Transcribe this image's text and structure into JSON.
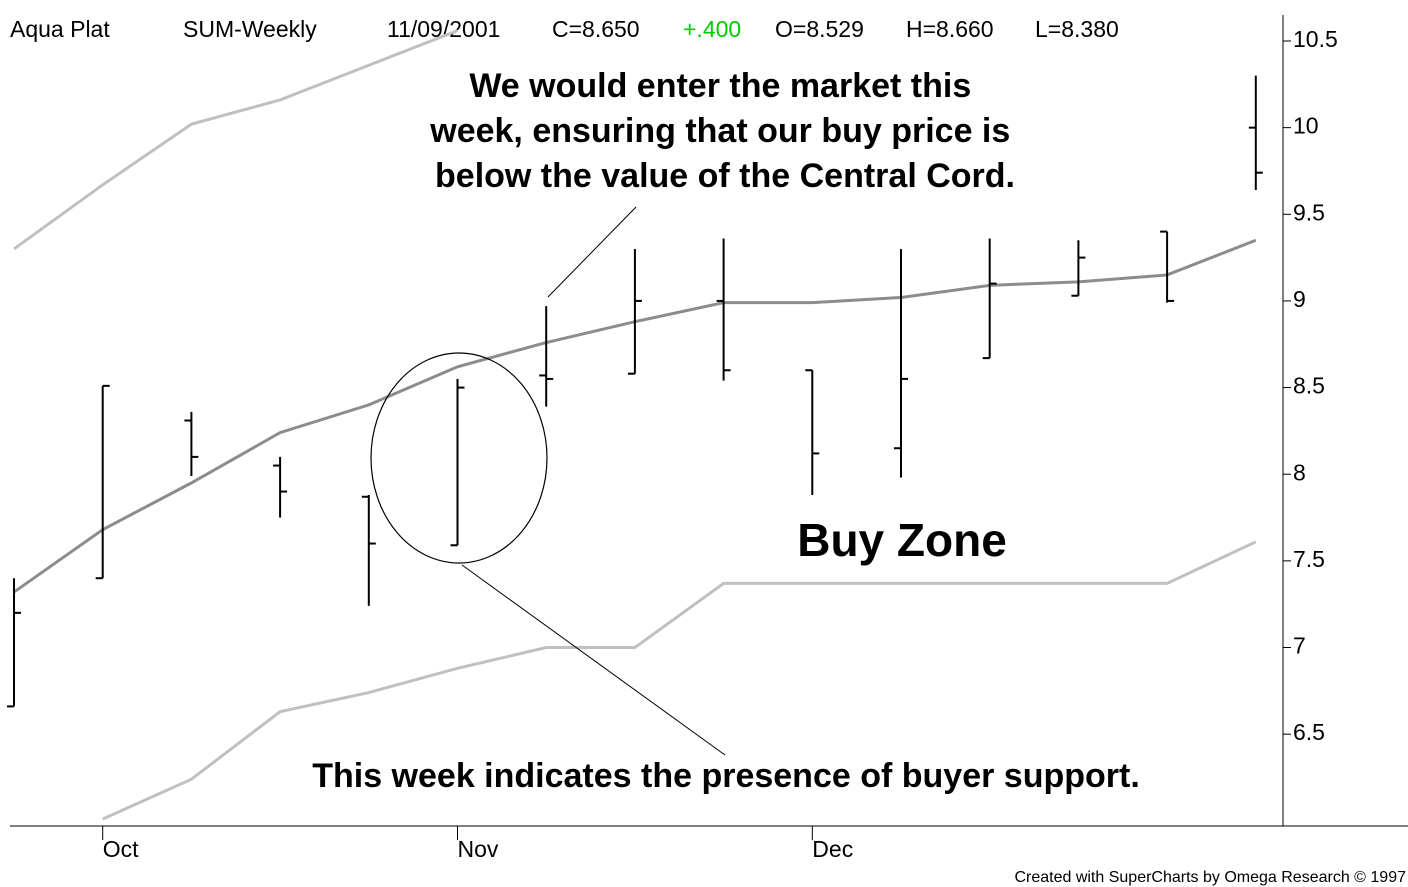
{
  "chart_data": {
    "type": "ohlc",
    "header": {
      "symbol": "Aqua Plat",
      "interval": "SUM-Weekly",
      "date": "11/09/2001",
      "close": "C=8.650",
      "change": "+.400",
      "change_color": "#00cc00",
      "open": "O=8.529",
      "high": "H=8.660",
      "low": "L=8.380"
    },
    "categories": [
      null,
      "Oct",
      null,
      null,
      null,
      "Nov",
      null,
      null,
      null,
      "Dec",
      null,
      null,
      null,
      null,
      null
    ],
    "open": [
      6.66,
      7.4,
      8.31,
      8.05,
      7.87,
      7.59,
      8.57,
      8.58,
      9.0,
      8.6,
      8.15,
      8.67,
      9.03,
      9.4,
      10.0
    ],
    "high": [
      7.4,
      8.51,
      8.36,
      8.1,
      7.88,
      8.55,
      8.97,
      9.3,
      9.36,
      8.6,
      9.3,
      9.36,
      9.35,
      9.4,
      10.3
    ],
    "low": [
      6.66,
      7.4,
      7.99,
      7.75,
      7.24,
      7.59,
      8.39,
      8.58,
      8.54,
      7.88,
      7.98,
      8.67,
      9.03,
      8.99,
      9.64
    ],
    "close": [
      7.2,
      8.51,
      8.1,
      7.9,
      7.6,
      8.5,
      8.55,
      9.0,
      8.6,
      8.12,
      8.55,
      9.1,
      9.25,
      9.0,
      9.74
    ],
    "bar_color": "#000000",
    "overlays": [
      {
        "color": "#8c8c8c",
        "values": [
          7.32,
          7.68,
          7.95,
          8.24,
          8.4,
          8.62,
          8.76,
          8.88,
          8.99,
          8.99,
          9.02,
          9.09,
          9.11,
          9.15,
          9.35
        ]
      },
      {
        "color": "#c0c0c0",
        "values": [
          9.3,
          9.67,
          10.02,
          10.16,
          10.36,
          10.56,
          null,
          null,
          null,
          null,
          null,
          null,
          null,
          null,
          null
        ]
      },
      {
        "color": "#c0c0c0",
        "values": [
          null,
          6.01,
          6.24,
          6.63,
          6.74,
          6.88,
          7.0,
          7.0,
          7.37,
          7.37,
          7.37,
          7.37,
          7.37,
          7.37,
          7.61
        ]
      }
    ],
    "ylim": [
      5.97,
      10.65
    ],
    "yticks": [
      6.5,
      7,
      7.5,
      8,
      8.5,
      9,
      9.5,
      10,
      10.5
    ],
    "annotations": [
      {
        "lines": [
          "We would enter the market this",
          "week, ensuring that our buy price is",
          "below the value of the Central Cord."
        ]
      },
      {
        "text": "Buy Zone"
      },
      {
        "text": "This week indicates the presence of buyer support."
      }
    ],
    "footer": "Created with SuperCharts by Omega Research © 1997"
  }
}
